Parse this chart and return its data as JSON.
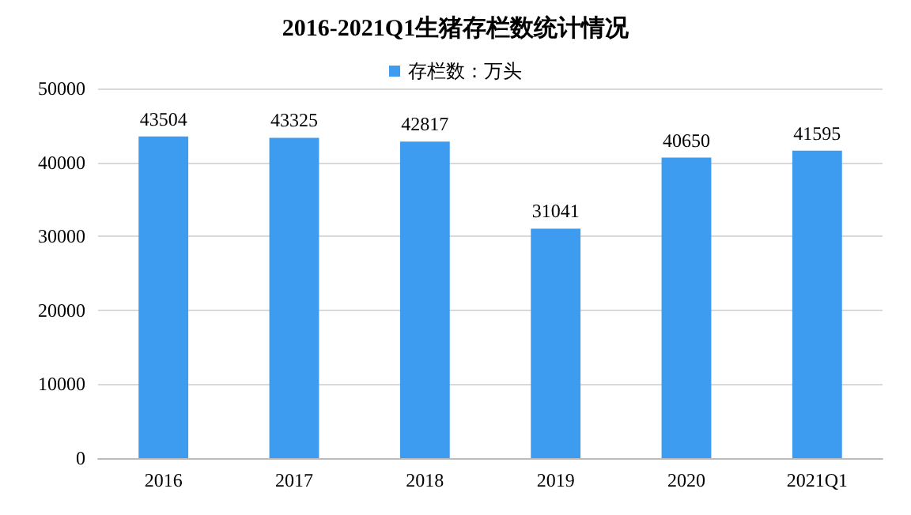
{
  "chart_data": {
    "type": "bar",
    "title": "2016-2021Q1生猪存栏数统计情况",
    "categories": [
      "2016",
      "2017",
      "2018",
      "2019",
      "2020",
      "2021Q1"
    ],
    "series": [
      {
        "name": "存栏数：万头",
        "color": "#3d9cf0",
        "values": [
          43504,
          43325,
          42817,
          31041,
          40650,
          41595
        ]
      }
    ],
    "ylim": [
      0,
      50000
    ],
    "yticks": [
      0,
      10000,
      20000,
      30000,
      40000,
      50000
    ],
    "grid": "y",
    "legend": "top",
    "data_labels": true
  }
}
